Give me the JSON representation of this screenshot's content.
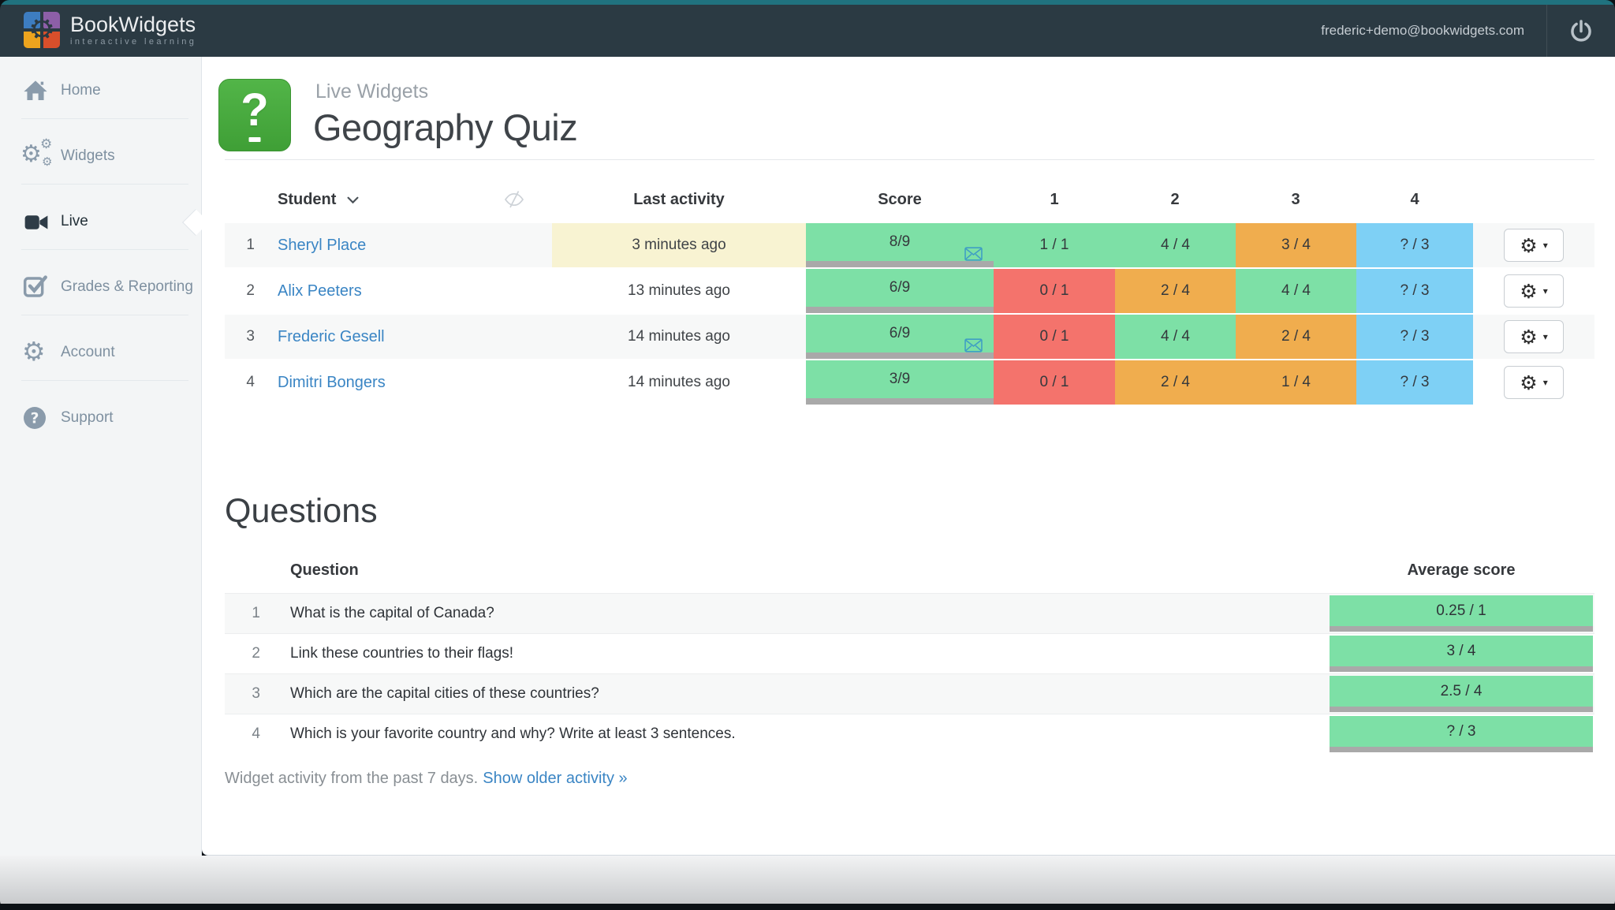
{
  "topbar": {
    "brand": "BookWidgets",
    "tagline": "interactive learning",
    "email": "frederic+demo@bookwidgets.com",
    "power_icon": "power-icon",
    "logo_icon": "bookwidgets-puzzle-logo"
  },
  "sidebar": {
    "items": [
      {
        "label": "Home",
        "icon": "home-icon",
        "active": false
      },
      {
        "label": "Widgets",
        "icon": "gears-icon",
        "active": false
      },
      {
        "label": "Live",
        "icon": "video-camera-icon",
        "active": true
      },
      {
        "label": "Grades & Reporting",
        "icon": "check-square-icon",
        "active": false
      },
      {
        "label": "Account",
        "icon": "gear-icon",
        "active": false
      },
      {
        "label": "Support",
        "icon": "question-circle-icon",
        "active": false
      }
    ]
  },
  "page": {
    "breadcrumb": "Live Widgets",
    "title": "Geography Quiz",
    "widget_icon": "question-lightbulb-icon"
  },
  "colors": {
    "green": "#7de0a6",
    "red": "#f4736c",
    "orange": "#f0ad4e",
    "blue": "#7ed0f5",
    "activity_highlight": "#f8f3d2",
    "bar": "#a9a9a9"
  },
  "students_table": {
    "headers": {
      "student": "Student",
      "sort_icon": "chevron-down-icon",
      "visibility_icon": "eye-slash-icon",
      "last_activity": "Last activity",
      "score": "Score",
      "questions": [
        "1",
        "2",
        "3",
        "4"
      ]
    },
    "rows": [
      {
        "num": "1",
        "name": "Sheryl Place",
        "last_activity": "3 minutes ago",
        "recent": true,
        "score": {
          "text": "8/9",
          "color": "green",
          "mail": true
        },
        "cells": [
          {
            "text": "1 / 1",
            "color": "green"
          },
          {
            "text": "4 / 4",
            "color": "green"
          },
          {
            "text": "3 / 4",
            "color": "orange"
          },
          {
            "text": "? / 3",
            "color": "blue"
          }
        ]
      },
      {
        "num": "2",
        "name": "Alix Peeters",
        "last_activity": "13 minutes ago",
        "recent": false,
        "score": {
          "text": "6/9",
          "color": "green",
          "mail": false
        },
        "cells": [
          {
            "text": "0 / 1",
            "color": "red"
          },
          {
            "text": "2 / 4",
            "color": "orange"
          },
          {
            "text": "4 / 4",
            "color": "green"
          },
          {
            "text": "? / 3",
            "color": "blue"
          }
        ]
      },
      {
        "num": "3",
        "name": "Frederic Gesell",
        "last_activity": "14 minutes ago",
        "recent": false,
        "score": {
          "text": "6/9",
          "color": "green",
          "mail": true
        },
        "cells": [
          {
            "text": "0 / 1",
            "color": "red"
          },
          {
            "text": "4 / 4",
            "color": "green"
          },
          {
            "text": "2 / 4",
            "color": "orange"
          },
          {
            "text": "? / 3",
            "color": "blue"
          }
        ]
      },
      {
        "num": "4",
        "name": "Dimitri Bongers",
        "last_activity": "14 minutes ago",
        "recent": false,
        "score": {
          "text": "3/9",
          "color": "green",
          "mail": false
        },
        "cells": [
          {
            "text": "0 / 1",
            "color": "red"
          },
          {
            "text": "2 / 4",
            "color": "orange"
          },
          {
            "text": "1 / 4",
            "color": "orange"
          },
          {
            "text": "? / 3",
            "color": "blue"
          }
        ]
      }
    ],
    "row_action_icon": "gear-dropdown-icon"
  },
  "questions_section": {
    "heading": "Questions",
    "headers": {
      "question": "Question",
      "average": "Average score"
    },
    "rows": [
      {
        "num": "1",
        "text": "What is the capital of Canada?",
        "average": {
          "text": "0.25 / 1",
          "color": "green"
        }
      },
      {
        "num": "2",
        "text": "Link these countries to their flags!",
        "average": {
          "text": "3 / 4",
          "color": "green"
        }
      },
      {
        "num": "3",
        "text": "Which are the capital cities of these countries?",
        "average": {
          "text": "2.5 / 4",
          "color": "green"
        }
      },
      {
        "num": "4",
        "text": "Which is your favorite country and why? Write at least 3 sentences.",
        "average": {
          "text": "? / 3",
          "color": "green"
        }
      }
    ]
  },
  "footer": {
    "text": "Widget activity from the past 7 days.",
    "link": "Show older activity »"
  }
}
